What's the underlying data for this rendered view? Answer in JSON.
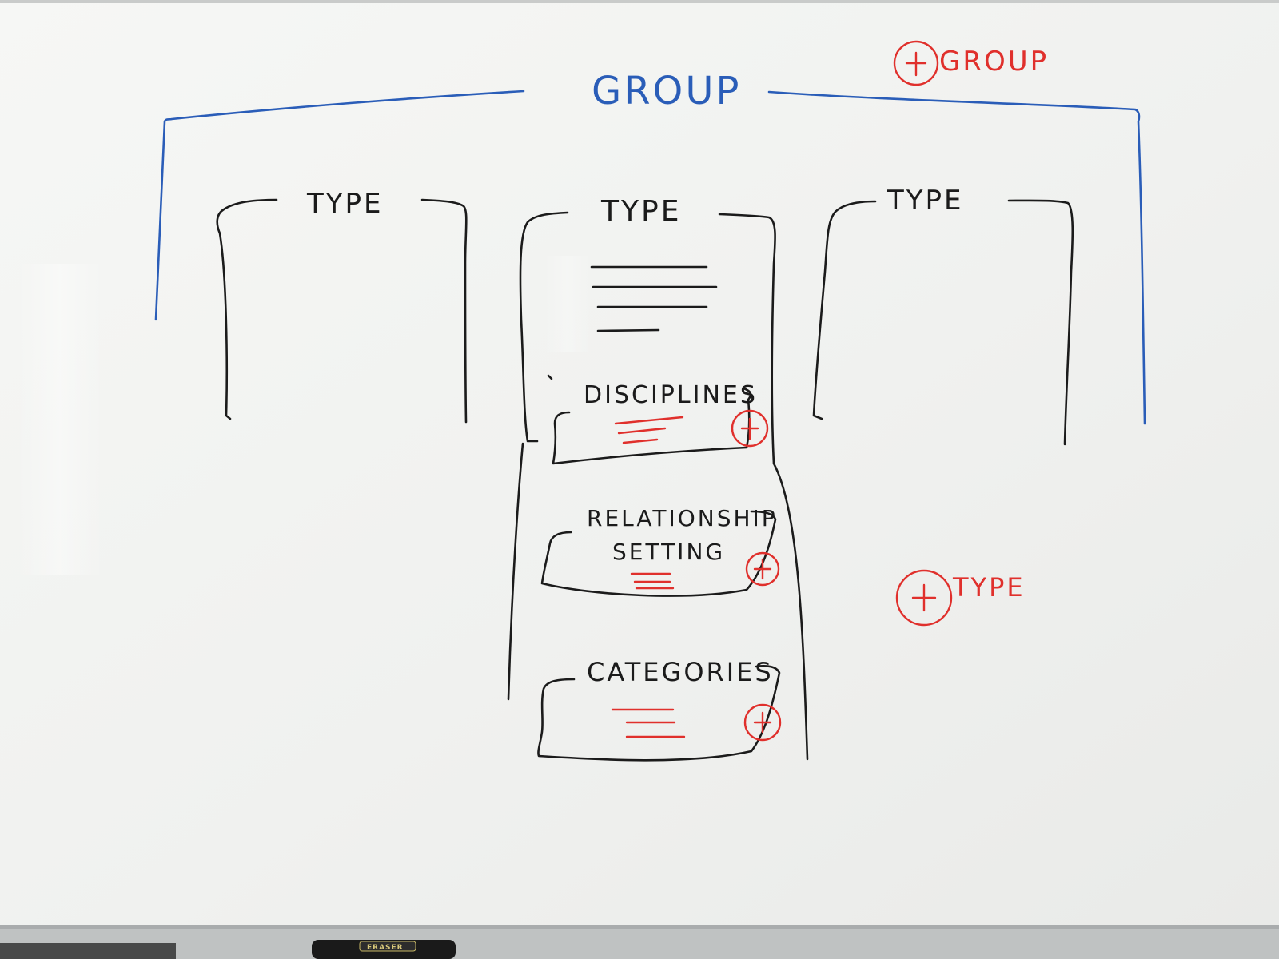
{
  "board": {
    "title": "GROUP",
    "add_group_label": "GROUP",
    "add_type_label": "TYPE",
    "eraser_label": "ERASER"
  },
  "columns": [
    {
      "label": "TYPE"
    },
    {
      "label": "TYPE"
    },
    {
      "label": "TYPE"
    }
  ],
  "sections": [
    {
      "label": "DISCIPLINES"
    },
    {
      "label_line1": "RELATIONSHIP",
      "label_line2": "SETTING"
    },
    {
      "label": "CATEGORIES"
    }
  ],
  "colors": {
    "board": "#f3f4f2",
    "frame": "#b9bcbd",
    "black_marker": "#1b1b1b",
    "blue_marker": "#2a5db8",
    "red_marker": "#e0302c"
  }
}
